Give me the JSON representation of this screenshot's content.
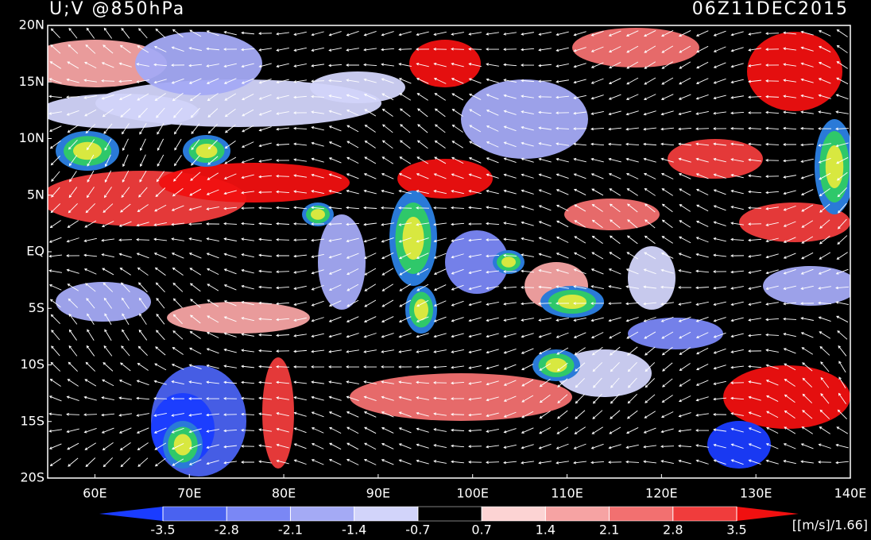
{
  "map_data": {
    "title": "U;V @850hPa",
    "time": "06Z11DEC2015",
    "xlim": [
      55,
      140
    ],
    "ylim": [
      -20,
      20
    ],
    "xticks": [
      {
        "value": 60,
        "label": "60E"
      },
      {
        "value": 70,
        "label": "70E"
      },
      {
        "value": 80,
        "label": "80E"
      },
      {
        "value": 90,
        "label": "90E"
      },
      {
        "value": 100,
        "label": "100E"
      },
      {
        "value": 110,
        "label": "110E"
      },
      {
        "value": 120,
        "label": "120E"
      },
      {
        "value": 130,
        "label": "130E"
      },
      {
        "value": 140,
        "label": "140E"
      }
    ],
    "yticks": [
      {
        "value": 20,
        "label": "20N"
      },
      {
        "value": 15,
        "label": "15N"
      },
      {
        "value": 10,
        "label": "10N"
      },
      {
        "value": 5,
        "label": "5N"
      },
      {
        "value": 0,
        "label": "EQ"
      },
      {
        "value": -5,
        "label": "5S"
      },
      {
        "value": -10,
        "label": "10S"
      },
      {
        "value": -15,
        "label": "15S"
      },
      {
        "value": -20,
        "label": "20S"
      }
    ],
    "colorbar": {
      "levels": [
        -3.5,
        -2.8,
        -2.1,
        -1.4,
        -0.7,
        0.7,
        1.4,
        2.1,
        2.8,
        3.5
      ],
      "colors": [
        "#1a3cff",
        "#4a62f0",
        "#7a87f5",
        "#a4aaf5",
        "#d2d4fa",
        "#000000",
        "#fcd3d3",
        "#f6a3a3",
        "#f27070",
        "#f03c3c",
        "#f01010"
      ],
      "unit": "[[m/s]/1.66]"
    }
  }
}
